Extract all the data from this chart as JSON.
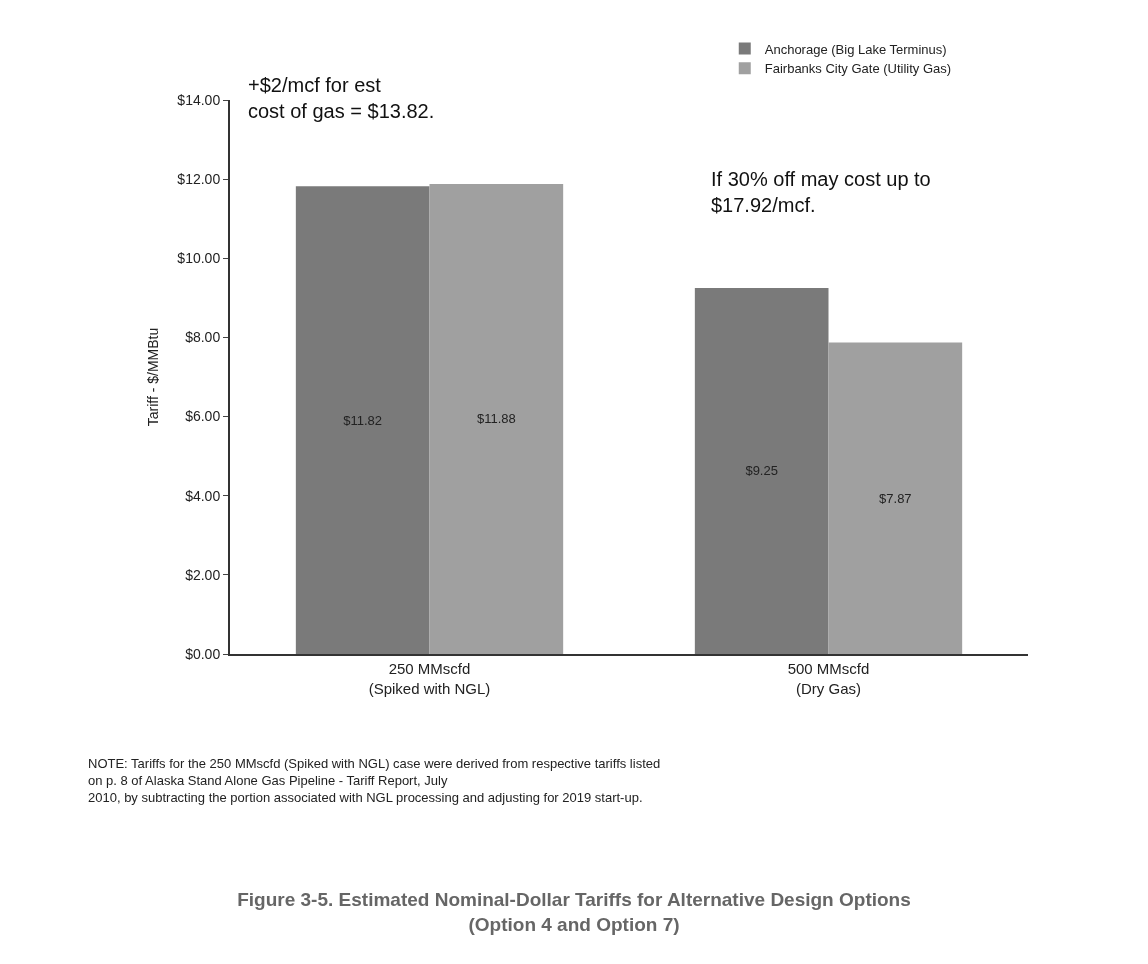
{
  "chart_data": {
    "type": "bar",
    "title": "Figure 3-5. Estimated Nominal-Dollar Tariffs for Alternative Design Options\n(Option 4 and Option 7)",
    "ylabel": "Tariff - $/MMBtu",
    "categories": [
      "250 MMscfd\n(Spiked with NGL)",
      "500 MMscfd\n(Dry Gas)"
    ],
    "series": [
      {
        "name": "Anchorage (Big Lake Terminus)",
        "color": "#7a7a7a",
        "values": [
          11.82,
          9.25
        ],
        "value_labels": [
          "$11.82",
          "$9.25"
        ]
      },
      {
        "name": "Fairbanks City Gate (Utility Gas)",
        "color": "#a0a0a0",
        "values": [
          11.88,
          7.87
        ],
        "value_labels": [
          "$11.88",
          "$7.87"
        ]
      }
    ],
    "ylim": [
      0,
      14
    ],
    "yticks": [
      {
        "value": 0,
        "label": "$0.00"
      },
      {
        "value": 2,
        "label": "$2.00"
      },
      {
        "value": 4,
        "label": "$4.00"
      },
      {
        "value": 6,
        "label": "$6.00"
      },
      {
        "value": 8,
        "label": "$8.00"
      },
      {
        "value": 10,
        "label": "$10.00"
      },
      {
        "value": 12,
        "label": "$12.00"
      },
      {
        "value": 14,
        "label": "$14.00"
      }
    ],
    "legend": "top right",
    "annotations": [
      "+$2/mcf for est\ncost of gas = $13.82.",
      "If 30% off may cost up to\n$17.92/mcf.",
      "NOTE: Tariffs for the 250 MMscfd (Spiked with NGL) case were derived from respective tariffs listed\non p. 8 of Alaska Stand Alone Gas Pipeline - Tariff Report, July\n2010, by subtracting the portion associated with NGL processing and adjusting for 2019 start-up."
    ]
  }
}
